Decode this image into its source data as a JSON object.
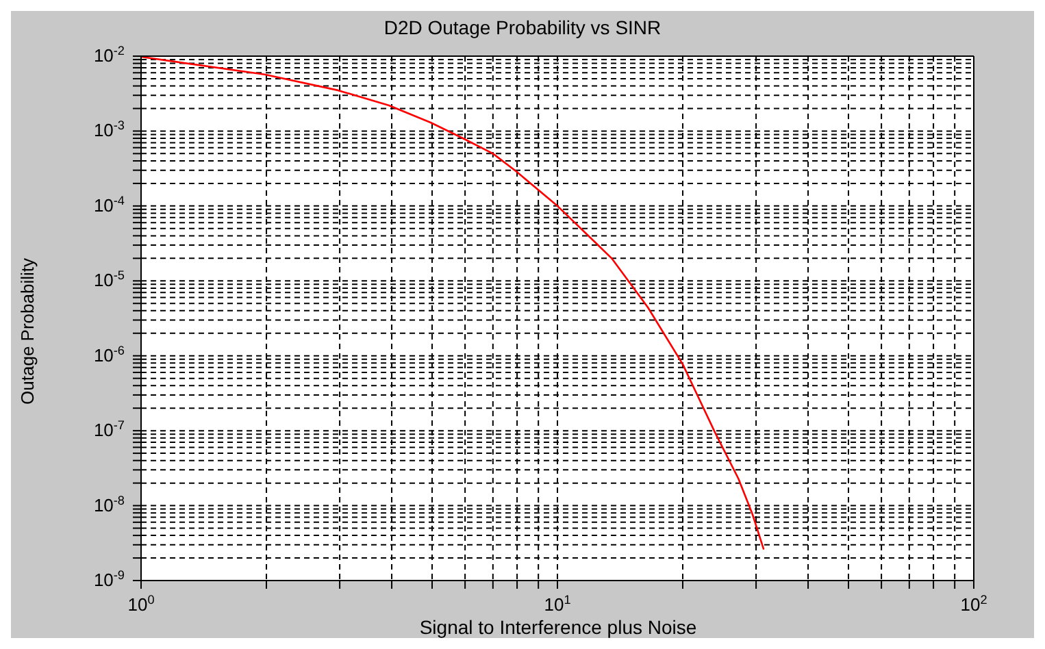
{
  "chart_data": {
    "type": "line",
    "title": "D2D Outage Probability vs SINR",
    "xlabel": "Signal to Interference plus Noise",
    "ylabel": "Outage Probability",
    "log": "xy",
    "grid": true,
    "xlim": [
      1,
      100
    ],
    "ylim": [
      1e-09,
      0.01
    ],
    "xticks": [
      {
        "value": 1,
        "label": "10$^{0}$"
      },
      {
        "value": 2,
        "label": null
      },
      {
        "value": 3,
        "label": null
      },
      {
        "value": 4,
        "label": null
      },
      {
        "value": 5,
        "label": null
      },
      {
        "value": 6,
        "label": null
      },
      {
        "value": 7,
        "label": null
      },
      {
        "value": 8,
        "label": null
      },
      {
        "value": 9,
        "label": null
      },
      {
        "value": 10,
        "label": "10$^{1}$"
      },
      {
        "value": 20,
        "label": null
      },
      {
        "value": 30,
        "label": null
      },
      {
        "value": 40,
        "label": null
      },
      {
        "value": 50,
        "label": null
      },
      {
        "value": 60,
        "label": null
      },
      {
        "value": 70,
        "label": null
      },
      {
        "value": 80,
        "label": null
      },
      {
        "value": 90,
        "label": null
      },
      {
        "value": 100,
        "label": "10$^{2}$"
      }
    ],
    "yticks": [
      {
        "value": 1e-09,
        "label": "10$^{-9}$"
      },
      {
        "value": 2e-09,
        "label": null
      },
      {
        "value": 3e-09,
        "label": null
      },
      {
        "value": 4e-09,
        "label": null
      },
      {
        "value": 5e-09,
        "label": null
      },
      {
        "value": 6e-09,
        "label": null
      },
      {
        "value": 7e-09,
        "label": null
      },
      {
        "value": 8e-09,
        "label": null
      },
      {
        "value": 9e-09,
        "label": null
      },
      {
        "value": 1e-08,
        "label": "10$^{-8}$"
      },
      {
        "value": 2e-08,
        "label": null
      },
      {
        "value": 3e-08,
        "label": null
      },
      {
        "value": 4e-08,
        "label": null
      },
      {
        "value": 5e-08,
        "label": null
      },
      {
        "value": 6e-08,
        "label": null
      },
      {
        "value": 7e-08,
        "label": null
      },
      {
        "value": 8e-08,
        "label": null
      },
      {
        "value": 9e-08,
        "label": null
      },
      {
        "value": 1e-07,
        "label": "10$^{-7}$"
      },
      {
        "value": 2e-07,
        "label": null
      },
      {
        "value": 3e-07,
        "label": null
      },
      {
        "value": 4e-07,
        "label": null
      },
      {
        "value": 5e-07,
        "label": null
      },
      {
        "value": 6e-07,
        "label": null
      },
      {
        "value": 7e-07,
        "label": null
      },
      {
        "value": 8e-07,
        "label": null
      },
      {
        "value": 9e-07,
        "label": null
      },
      {
        "value": 1e-06,
        "label": "10$^{-6}$"
      },
      {
        "value": 2e-06,
        "label": null
      },
      {
        "value": 3e-06,
        "label": null
      },
      {
        "value": 4e-06,
        "label": null
      },
      {
        "value": 5e-06,
        "label": null
      },
      {
        "value": 6e-06,
        "label": null
      },
      {
        "value": 7e-06,
        "label": null
      },
      {
        "value": 8e-06,
        "label": null
      },
      {
        "value": 9e-06,
        "label": null
      },
      {
        "value": 1e-05,
        "label": "10$^{-5}$"
      },
      {
        "value": 2e-05,
        "label": null
      },
      {
        "value": 3e-05,
        "label": null
      },
      {
        "value": 4e-05,
        "label": null
      },
      {
        "value": 5e-05,
        "label": null
      },
      {
        "value": 6e-05,
        "label": null
      },
      {
        "value": 7e-05,
        "label": null
      },
      {
        "value": 8e-05,
        "label": null
      },
      {
        "value": 9e-05,
        "label": null
      },
      {
        "value": 0.0001,
        "label": "10$^{-4}$"
      },
      {
        "value": 0.0002,
        "label": null
      },
      {
        "value": 0.0003,
        "label": null
      },
      {
        "value": 0.0004,
        "label": null
      },
      {
        "value": 0.0005,
        "label": null
      },
      {
        "value": 0.0006,
        "label": null
      },
      {
        "value": 0.0007,
        "label": null
      },
      {
        "value": 0.0008,
        "label": null
      },
      {
        "value": 0.0009,
        "label": null
      },
      {
        "value": 0.001,
        "label": "10$^{-3}$"
      },
      {
        "value": 0.002,
        "label": null
      },
      {
        "value": 0.003,
        "label": null
      },
      {
        "value": 0.004,
        "label": null
      },
      {
        "value": 0.005,
        "label": null
      },
      {
        "value": 0.006,
        "label": null
      },
      {
        "value": 0.007,
        "label": null
      },
      {
        "value": 0.008,
        "label": null
      },
      {
        "value": 0.009,
        "label": null
      },
      {
        "value": 0.01,
        "label": "10$^{-2}$"
      }
    ],
    "series": [
      {
        "color": "#ff0000",
        "line_style": "solid",
        "x": [
          1,
          1.98,
          2.97,
          3.94,
          4.96,
          5.93,
          7.0,
          7.96,
          10,
          12.3,
          13.5,
          16.5,
          20,
          23.9,
          27.2,
          29.4,
          31.3
        ],
        "values": [
          0.0098,
          0.0057,
          0.0035,
          0.0022,
          0.0013,
          0.0008,
          0.0005,
          0.00029,
          0.0001,
          3.3e-05,
          2e-05,
          4.4e-06,
          7.7e-07,
          9.5e-08,
          2.3e-08,
          7.7e-09,
          2.6e-09
        ]
      }
    ]
  }
}
